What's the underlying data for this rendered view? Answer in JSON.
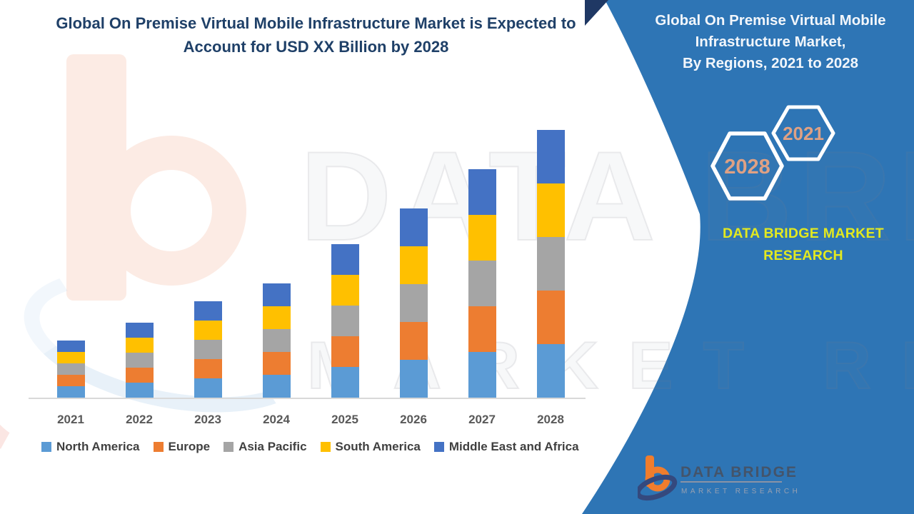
{
  "header": {
    "title_line1": "Global On Premise Virtual Mobile Infrastructure Market is Expected to",
    "title_line2": "Account for USD XX Billion by 2028"
  },
  "side_panel": {
    "bg_color": "#2E75B5",
    "title_line1": "Global On Premise Virtual Mobile",
    "title_line2": "Infrastructure Market,",
    "title_line3": "By Regions, 2021 to 2028",
    "hexagon_left_label": "2028",
    "hexagon_right_label": "2021",
    "hexagon_text_color": "#DFA184",
    "brand_line1": "DATA BRIDGE MARKET",
    "brand_line2": "RESEARCH",
    "brand_text_color": "#E3E91F"
  },
  "watermark": {
    "brand_top": "DATA BRIDGE",
    "brand_bottom": "MARKET RESEARCH"
  },
  "footer_logo": {
    "name_text": "DATA BRIDGE",
    "sub_text": "MARKET RESEARCH"
  },
  "chart_data": {
    "type": "bar",
    "stacked": true,
    "title": "Global On Premise Virtual Mobile Infrastructure Market, By Regions, 2021 to 2028",
    "categories": [
      "2021",
      "2022",
      "2023",
      "2024",
      "2025",
      "2026",
      "2027",
      "2028"
    ],
    "series": [
      {
        "name": "North America",
        "color": "#5B9BD5",
        "values": [
          1.6,
          2.1,
          2.7,
          3.2,
          4.3,
          5.3,
          6.4,
          7.5
        ]
      },
      {
        "name": "Europe",
        "color": "#ED7D31",
        "values": [
          1.6,
          2.1,
          2.7,
          3.2,
          4.3,
          5.3,
          6.4,
          7.5
        ]
      },
      {
        "name": "Asia Pacific",
        "color": "#A5A5A5",
        "values": [
          1.6,
          2.1,
          2.7,
          3.2,
          4.3,
          5.3,
          6.4,
          7.5
        ]
      },
      {
        "name": "South America",
        "color": "#FFC000",
        "values": [
          1.6,
          2.1,
          2.7,
          3.2,
          4.3,
          5.3,
          6.4,
          7.5
        ]
      },
      {
        "name": "Middle East and Africa",
        "color": "#4472C4",
        "values": [
          1.6,
          2.1,
          2.7,
          3.2,
          4.3,
          5.3,
          6.4,
          7.5
        ]
      }
    ],
    "stack_totals": [
      8.0,
      10.5,
      13.5,
      16.0,
      21.5,
      26.5,
      32.0,
      37.5
    ],
    "value_unit": "relative units (market sized as USD XX Billion, values undisclosed)",
    "xlabel": "",
    "ylabel": "",
    "y_axis_shown": false,
    "ylim": [
      0,
      40
    ],
    "grid": false,
    "legend_position": "bottom"
  }
}
